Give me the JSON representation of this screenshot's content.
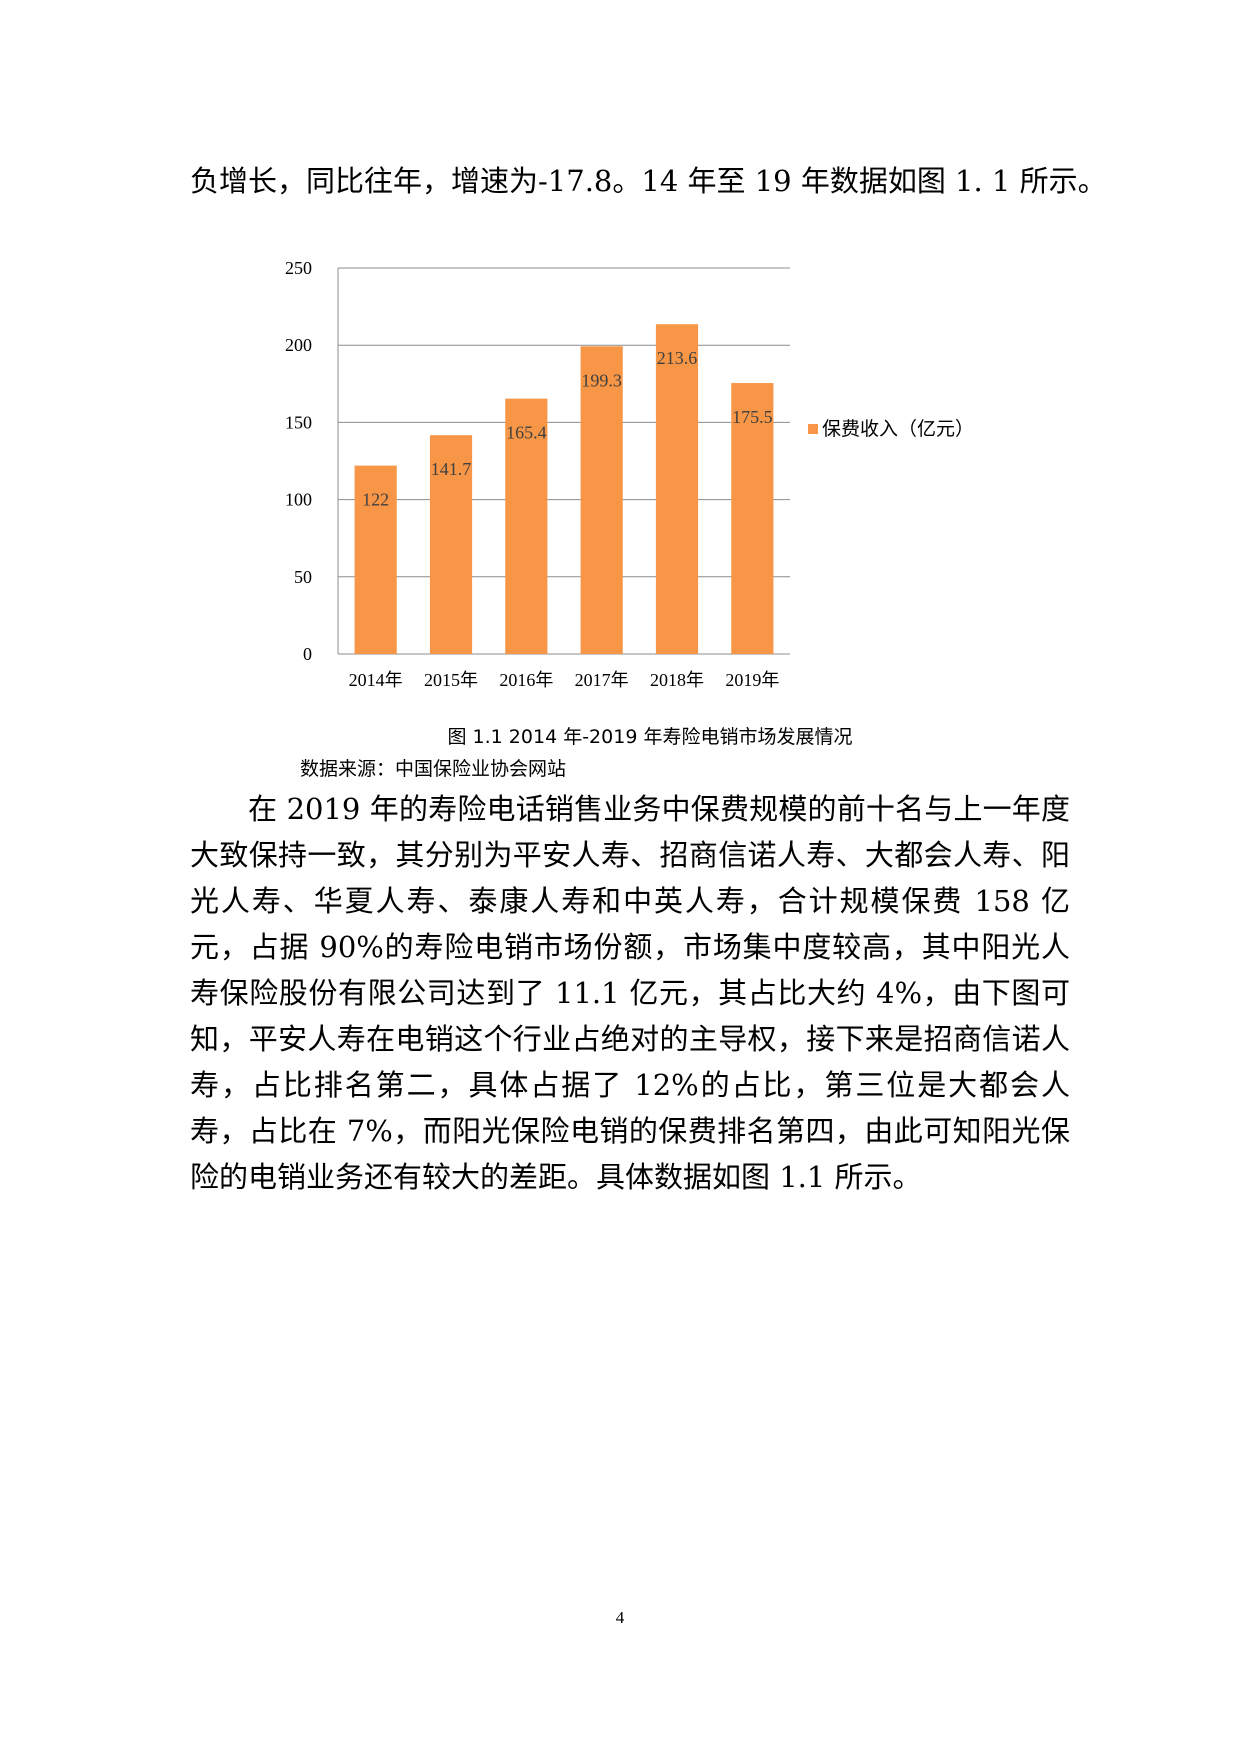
{
  "document": {
    "top_paragraph": "负增长，同比往年，增速为-17.8。14 年至 19 年数据如图 1. 1 所示。",
    "figure_caption": "图 1.1  2014 年-2019 年寿险电销市场发展情况",
    "figure_source": "数据来源：中国保险业协会网站",
    "body_paragraph": "在 2019 年的寿险电话销售业务中保费规模的前十名与上一年度大致保持一致，其分别为平安人寿、招商信诺人寿、大都会人寿、阳光人寿、华夏人寿、泰康人寿和中英人寿，合计规模保费 158 亿元，占据 90%的寿险电销市场份额，市场集中度较高，其中阳光人寿保险股份有限公司达到了 11.1 亿元，其占比大约 4%，由下图可知，平安人寿在电销这个行业占绝对的主导权，接下来是招商信诺人寿，占比排名第二，具体占据了 12%的占比，第三位是大都会人寿，占比在 7%，而阳光保险电销的保费排名第四，由此可知阳光保险的电销业务还有较大的差距。具体数据如图 1.1 所示。",
    "page_number": "4"
  },
  "chart_data": {
    "type": "bar",
    "categories": [
      "2014年",
      "2015年",
      "2016年",
      "2017年",
      "2018年",
      "2019年"
    ],
    "series": [
      {
        "name": "保费收入（亿元）",
        "values": [
          122,
          141.7,
          165.4,
          199.3,
          213.6,
          175.5
        ],
        "color": "#F79646"
      }
    ],
    "data_labels": [
      "122",
      "141.7",
      "165.4",
      "199.3",
      "213.6",
      "175.5"
    ],
    "ylim": [
      0,
      250
    ],
    "yticks": [
      "0",
      "50",
      "100",
      "150",
      "200",
      "250"
    ],
    "grid": true,
    "legend_position": "right",
    "title": "",
    "xlabel": "",
    "ylabel": ""
  }
}
